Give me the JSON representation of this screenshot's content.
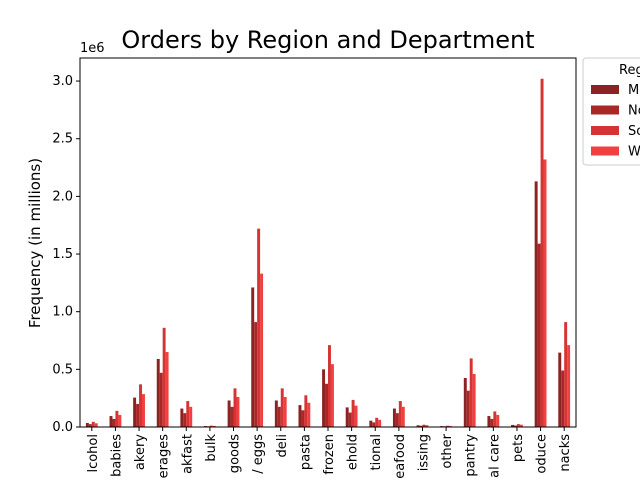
{
  "chart_data": {
    "type": "bar",
    "title": "Orders by Region and Department",
    "xlabel": "",
    "ylabel": "Frequency (in millions)",
    "y_scale_label": "1e6",
    "ylim": [
      0,
      3200000
    ],
    "yticks": [
      0,
      500000,
      1000000,
      1500000,
      2000000,
      2500000,
      3000000
    ],
    "ytick_labels": [
      "0.0",
      "0.5",
      "1.0",
      "1.5",
      "2.0",
      "2.5",
      "3.0"
    ],
    "categories": [
      "alcohol",
      "babies",
      "bakery",
      "beverages",
      "breakfast",
      "bulk",
      "canned goods",
      "dairy eggs",
      "deli",
      "dry goods pasta",
      "frozen",
      "household",
      "international",
      "meat seafood",
      "missing",
      "other",
      "pantry",
      "personal care",
      "pets",
      "produce",
      "snacks"
    ],
    "visible_category_labels": [
      "lcohol",
      "babies",
      "akery",
      "erages",
      "akfast",
      "bulk",
      "goods",
      "/ eggs",
      "deli",
      "pasta",
      "frozen",
      "ehold",
      "tional",
      "eafood",
      "issing",
      "other",
      "pantry",
      "al care",
      "pets",
      "oduce",
      "nacks"
    ],
    "legend_title": "Reg",
    "legend_entries": [
      "M",
      "No",
      "So",
      "W"
    ],
    "legend_placement": "outside upper right",
    "grid": false,
    "series": [
      {
        "name": "M",
        "color": "#8b2323",
        "values": [
          35000,
          95000,
          255000,
          590000,
          160000,
          8000,
          230000,
          1210000,
          230000,
          190000,
          500000,
          170000,
          55000,
          160000,
          15000,
          8000,
          425000,
          95000,
          18000,
          2130000,
          645000
        ]
      },
      {
        "name": "No",
        "color": "#a82828",
        "values": [
          25000,
          70000,
          200000,
          470000,
          120000,
          6000,
          175000,
          910000,
          175000,
          145000,
          375000,
          125000,
          40000,
          120000,
          11000,
          6000,
          315000,
          70000,
          13000,
          1590000,
          490000
        ]
      },
      {
        "name": "So",
        "color": "#d63434",
        "values": [
          45000,
          140000,
          370000,
          860000,
          225000,
          12000,
          335000,
          1720000,
          335000,
          275000,
          710000,
          235000,
          80000,
          225000,
          20000,
          11000,
          595000,
          135000,
          25000,
          3020000,
          910000
        ]
      },
      {
        "name": "W",
        "color": "#f04040",
        "values": [
          32000,
          105000,
          285000,
          650000,
          175000,
          9000,
          260000,
          1330000,
          260000,
          210000,
          545000,
          185000,
          62000,
          175000,
          16000,
          9000,
          460000,
          105000,
          20000,
          2320000,
          710000
        ]
      }
    ]
  }
}
